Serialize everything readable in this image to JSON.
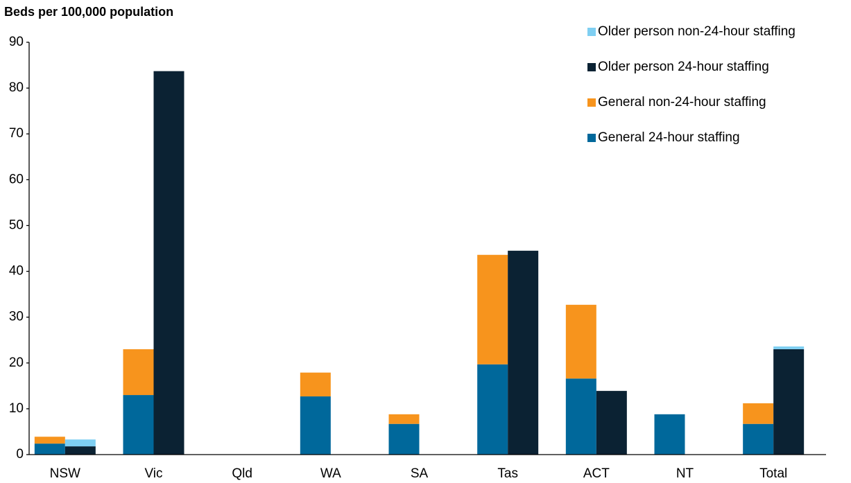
{
  "chart_data": {
    "type": "bar",
    "y_label": "Beds per 100,000 population",
    "categories": [
      "NSW",
      "Vic",
      "Qld",
      "WA",
      "SA",
      "Tas",
      "ACT",
      "NT",
      "Total"
    ],
    "series": [
      {
        "name": "Older person non-24-hour staffing",
        "color": "#7fcff2",
        "values": [
          1.5,
          0,
          0,
          0,
          0,
          0,
          0,
          0,
          0.6
        ]
      },
      {
        "name": "Older person 24-hour staffing",
        "color": "#0b2233",
        "values": [
          1.8,
          83.7,
          0,
          0,
          0,
          44.5,
          13.9,
          0,
          23.0
        ]
      },
      {
        "name": "General non-24-hour staffing",
        "color": "#f7941d",
        "values": [
          1.5,
          10.0,
          0,
          5.2,
          2.1,
          23.9,
          16.1,
          0,
          4.5
        ]
      },
      {
        "name": "General 24-hour staffing",
        "color": "#00689b",
        "values": [
          2.4,
          13.0,
          0,
          12.7,
          6.7,
          19.7,
          16.6,
          8.8,
          6.7
        ]
      }
    ],
    "ylim": [
      0,
      90
    ],
    "yticks": [
      0,
      10,
      20,
      30,
      40,
      50,
      60,
      70,
      80,
      90
    ],
    "grid": false,
    "legend": "top-right"
  }
}
